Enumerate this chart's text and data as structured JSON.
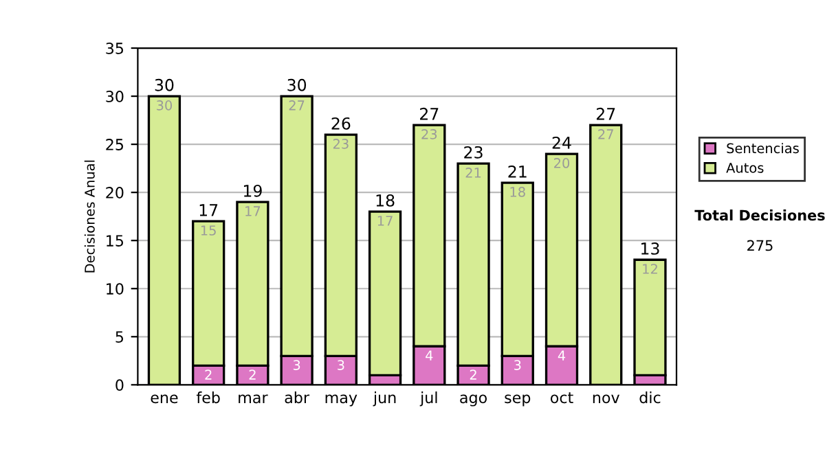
{
  "chart_data": {
    "type": "bar",
    "stacked": true,
    "ylabel": "Decisiones Anual",
    "categories": [
      "ene",
      "feb",
      "mar",
      "abr",
      "may",
      "jun",
      "jul",
      "ago",
      "sep",
      "oct",
      "nov",
      "dic"
    ],
    "series": [
      {
        "name": "Sentencias",
        "color": "#dd77c4",
        "values": [
          0,
          2,
          2,
          3,
          3,
          1,
          4,
          2,
          3,
          4,
          0,
          1
        ],
        "value_labels": [
          null,
          "2",
          "2",
          "3",
          "3",
          null,
          "4",
          "2",
          "3",
          "4",
          null,
          null
        ]
      },
      {
        "name": "Autos",
        "color": "#d6ec94",
        "values": [
          30,
          15,
          17,
          27,
          23,
          17,
          23,
          21,
          18,
          20,
          27,
          12
        ],
        "value_labels": [
          "30",
          "15",
          "17",
          "27",
          "23",
          "17",
          "23",
          "21",
          "18",
          "20",
          "27",
          "12"
        ]
      }
    ],
    "totals": [
      "30",
      "17",
      "19",
      "30",
      "26",
      "18",
      "27",
      "23",
      "21",
      "24",
      "27",
      "13"
    ],
    "ylim": [
      0,
      35
    ],
    "yticks": [
      0,
      5,
      10,
      15,
      20,
      25,
      30,
      35
    ],
    "grid": "y",
    "legend": "right",
    "annotations": [
      "Total Decisiones",
      "275"
    ]
  }
}
